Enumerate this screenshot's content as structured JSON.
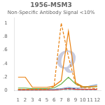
{
  "chart_data": {
    "type": "line",
    "title": "1956-MSM3",
    "subtitle": "Non-Specific Antibody Signal <10%",
    "x": [
      1,
      2,
      3,
      4,
      5,
      6,
      7,
      8,
      9,
      10,
      11,
      12
    ],
    "series": [
      {
        "color": "#E88010",
        "line_style": "solid",
        "values": [
          0.2,
          0.2,
          0.05,
          0.05,
          0.05,
          0.07,
          0.15,
          0.88,
          0.12,
          0.06,
          0.06,
          0.07
        ]
      },
      {
        "color": "#E88010",
        "line_style": "dashed",
        "values": [
          0.02,
          0.02,
          0.02,
          0.02,
          0.02,
          0.06,
          1.0,
          0.5,
          0.1,
          0.04,
          0.04,
          0.03
        ]
      },
      {
        "color": "#6AB04C",
        "line_style": "solid",
        "values": [
          0.04,
          0.04,
          0.03,
          0.03,
          0.03,
          0.04,
          0.1,
          0.2,
          0.1,
          0.06,
          0.06,
          0.06
        ]
      },
      {
        "color": "#8AAAD0",
        "line_style": "solid",
        "values": [
          0.02,
          0.02,
          0.02,
          0.02,
          0.02,
          0.02,
          0.03,
          0.05,
          0.04,
          0.04,
          0.07,
          0.09
        ]
      },
      {
        "color": "#CC3333",
        "line_style": "solid",
        "values": [
          0.01,
          0.01,
          0.01,
          0.01,
          0.01,
          0.01,
          0.02,
          0.03,
          0.02,
          0.02,
          0.02,
          0.02
        ]
      },
      {
        "color": "#22AAAA",
        "line_style": "dashed",
        "values": [
          0.01,
          0.01,
          0.01,
          0.01,
          0.01,
          0.01,
          0.02,
          0.02,
          0.02,
          0.02,
          0.02,
          0.02
        ]
      },
      {
        "color": "#3355AA",
        "line_style": "dashed",
        "values": [
          0.01,
          0.01,
          0.01,
          0.01,
          0.02,
          0.02,
          0.03,
          0.04,
          0.03,
          0.02,
          0.02,
          0.02
        ]
      }
    ],
    "xlim": [
      0.5,
      12.5
    ],
    "xticks": [
      1,
      2,
      3,
      4,
      5,
      6,
      7,
      8,
      9,
      10,
      11,
      12
    ],
    "ylim": [
      0,
      1.08
    ],
    "yticks": [
      0,
      {
        "value": 0.2,
        "label": ".2"
      },
      {
        "value": 0.4,
        "label": ".4"
      },
      {
        "value": 0.6,
        "label": ".6"
      },
      {
        "value": 0.8,
        "label": ".8"
      },
      1
    ],
    "grid": false,
    "annotations": [
      {
        "text": "Q",
        "color": "#C8CCE0"
      }
    ]
  }
}
